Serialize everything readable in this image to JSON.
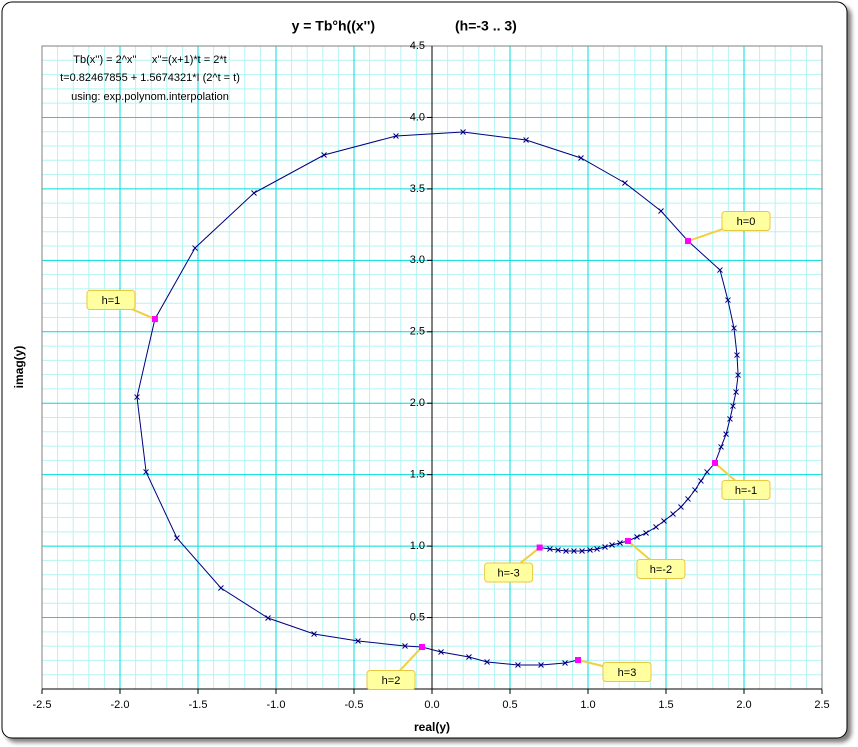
{
  "chart_data": {
    "type": "scatter",
    "title": "y = Tb°h((x'')",
    "subtitle": "(h=-3 .. 3)",
    "xlabel": "real(y)",
    "ylabel": "imag(y)",
    "annotations": [
      "Tb(x'') = 2^x''     x''=(x+1)*t = 2*t",
      "t=0.82467855 + 1.5674321*I (2^t = t)",
      "using: exp.polynom.interpolation"
    ],
    "xlim": [
      -2.5,
      2.5
    ],
    "ylim": [
      0,
      4.5
    ],
    "xticks": [
      {
        "value": -2.5,
        "label": "-2.5"
      },
      {
        "value": -2,
        "label": "-2.0"
      },
      {
        "value": -1.5,
        "label": "-1.5"
      },
      {
        "value": -1,
        "label": "-1.0"
      },
      {
        "value": -0.5,
        "label": "-0.5"
      },
      {
        "value": 0,
        "label": "0.0"
      },
      {
        "value": 0.5,
        "label": "0.5"
      },
      {
        "value": 1,
        "label": "1.0"
      },
      {
        "value": 1.5,
        "label": "1.5"
      },
      {
        "value": 2,
        "label": "2.0"
      },
      {
        "value": 2.5,
        "label": "2.5"
      }
    ],
    "yticks": [
      0.5,
      {
        "value": 1,
        "label": "1.0"
      },
      1.5,
      {
        "value": 2,
        "label": "2.0"
      },
      2.5,
      {
        "value": 3,
        "label": "3.0"
      },
      3.5,
      {
        "value": 4,
        "label": "4.0"
      },
      4.5
    ],
    "grid": true,
    "minor_divisions": 5,
    "grid_color": "#00dcdc",
    "minor_grid_color": "#b4f4f4",
    "series": [
      {
        "color": "#000080",
        "marker": "x",
        "x": [
          0.69,
          0.756,
          0.808,
          0.859,
          0.91,
          0.962,
          1.013,
          1.058,
          1.109,
          1.154,
          1.205,
          1.256,
          1.314,
          1.372,
          1.436,
          1.487,
          1.545,
          1.596,
          1.641,
          1.686,
          1.724,
          1.763,
          1.814,
          1.853,
          1.885,
          1.91,
          1.929,
          1.949,
          1.962,
          1.955,
          1.936,
          1.897,
          1.846,
          1.641,
          1.468,
          1.237,
          0.955,
          0.603,
          0.199,
          -0.231,
          -0.692,
          -1.141,
          -1.519,
          -1.776,
          -1.891,
          -1.833,
          -1.635,
          -1.353,
          -1.051,
          -0.756,
          -0.474,
          -0.173,
          -0.064,
          0.058,
          0.237,
          0.353,
          0.551,
          0.699,
          0.853,
          0.936
        ],
        "y": [
          0.99,
          0.98,
          0.973,
          0.966,
          0.966,
          0.966,
          0.973,
          0.98,
          0.994,
          1.008,
          1.022,
          1.036,
          1.064,
          1.092,
          1.134,
          1.176,
          1.225,
          1.274,
          1.33,
          1.393,
          1.456,
          1.519,
          1.582,
          1.694,
          1.784,
          1.89,
          1.98,
          2.078,
          2.197,
          2.337,
          2.526,
          2.722,
          2.932,
          3.135,
          3.345,
          3.541,
          3.716,
          3.842,
          3.898,
          3.87,
          3.737,
          3.471,
          3.086,
          2.589,
          2.043,
          1.519,
          1.057,
          0.707,
          0.497,
          0.385,
          0.336,
          0.301,
          0.294,
          0.259,
          0.224,
          0.189,
          0.168,
          0.168,
          0.182,
          0.203
        ]
      },
      {
        "color": "#ff00ff",
        "marker": "square",
        "labels": [
          "h=-3",
          "h=-2",
          "h=-1",
          "h=0",
          "h=1",
          "h=2",
          "h=3"
        ],
        "x": [
          0.69,
          1.256,
          1.814,
          1.641,
          -1.776,
          -0.064,
          0.936
        ],
        "y": [
          0.99,
          1.036,
          1.582,
          3.135,
          2.589,
          0.294,
          0.203
        ]
      }
    ]
  }
}
